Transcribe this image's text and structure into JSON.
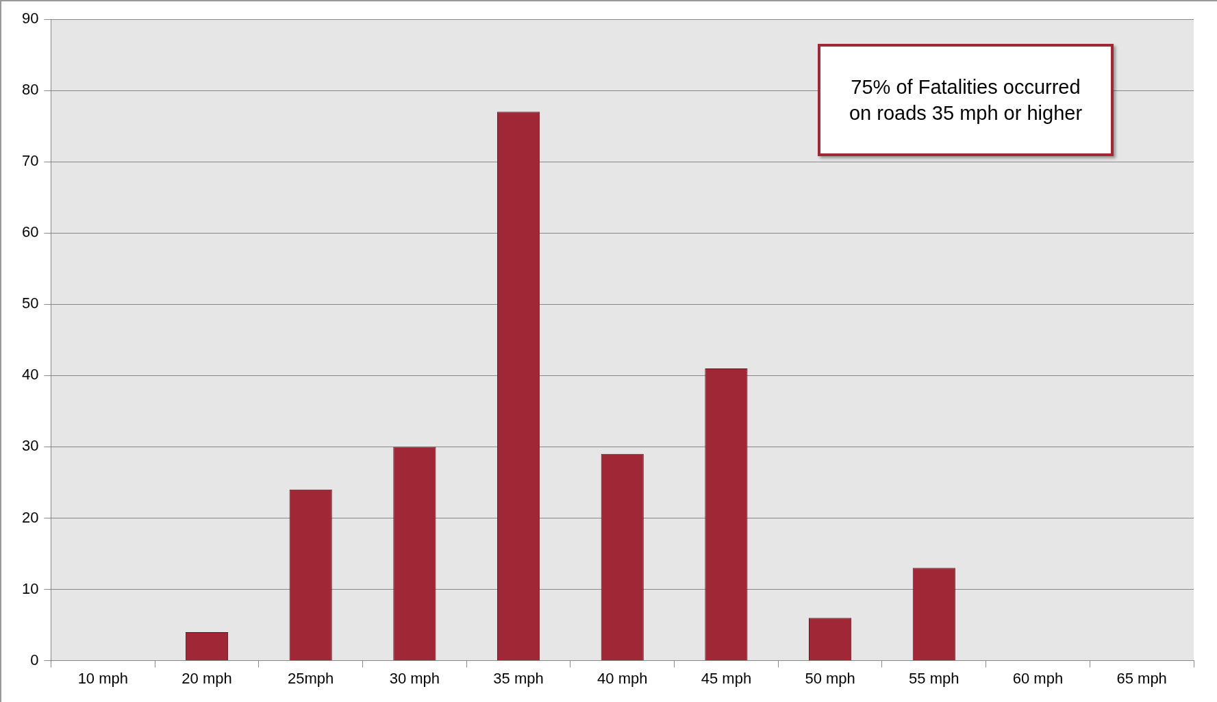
{
  "chart_data": {
    "type": "bar",
    "categories": [
      "10 mph",
      "20 mph",
      "25mph",
      "30 mph",
      "35 mph",
      "40 mph",
      "45 mph",
      "50 mph",
      "55 mph",
      "60 mph",
      "65 mph"
    ],
    "values": [
      0,
      4,
      24,
      30,
      77,
      29,
      41,
      6,
      13,
      0,
      0
    ],
    "color": "#a02836",
    "ylim": [
      0,
      90
    ],
    "yticks": [
      0,
      10,
      20,
      30,
      40,
      50,
      60,
      70,
      80,
      90
    ],
    "grid": "y",
    "legend": false,
    "annotations": [
      "75% of Fatalities occurred on roads 35 mph or higher"
    ]
  }
}
